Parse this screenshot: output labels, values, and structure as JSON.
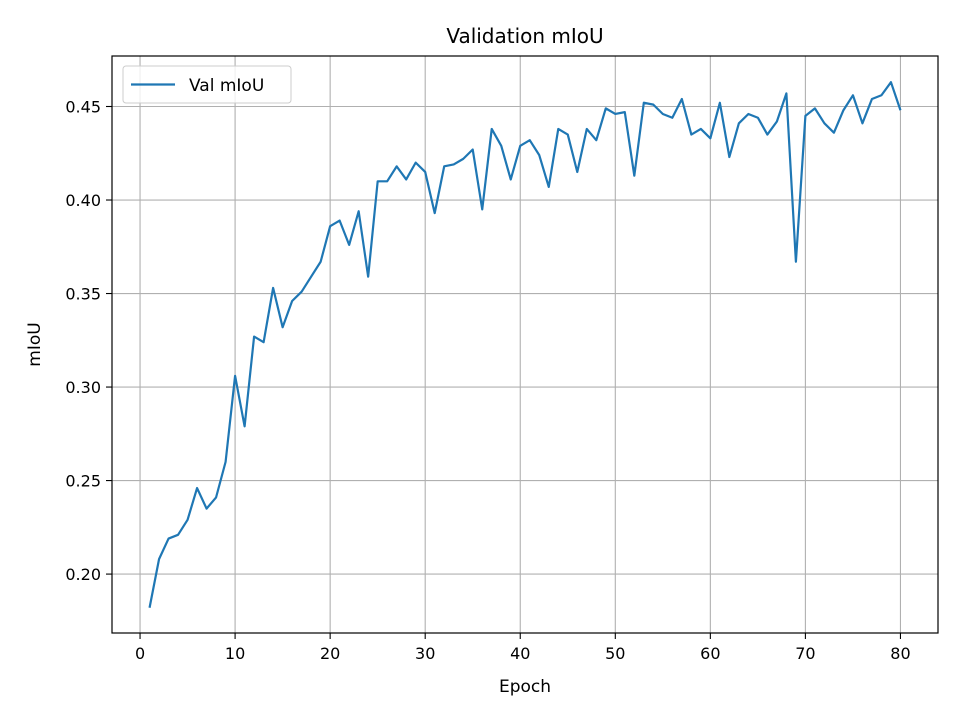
{
  "chart_data": {
    "type": "line",
    "title": "Validation mIoU",
    "xlabel": "Epoch",
    "ylabel": "mIoU",
    "xlim": [
      -2.95,
      83.95
    ],
    "ylim": [
      0.1685,
      0.477
    ],
    "xticks": [
      0,
      10,
      20,
      30,
      40,
      50,
      60,
      70,
      80
    ],
    "yticks": [
      0.2,
      0.25,
      0.3,
      0.35,
      0.4,
      0.45
    ],
    "ytick_labels": [
      "0.20",
      "0.25",
      "0.30",
      "0.35",
      "0.40",
      "0.45"
    ],
    "grid": true,
    "legend_position": "upper-left",
    "series": [
      {
        "name": "Val mIoU",
        "color": "#1f77b4",
        "x": [
          1,
          2,
          3,
          4,
          5,
          6,
          7,
          8,
          9,
          10,
          11,
          12,
          13,
          14,
          15,
          16,
          17,
          18,
          19,
          20,
          21,
          22,
          23,
          24,
          25,
          26,
          27,
          28,
          29,
          30,
          31,
          32,
          33,
          34,
          35,
          36,
          37,
          38,
          39,
          40,
          41,
          42,
          43,
          44,
          45,
          46,
          47,
          48,
          49,
          50,
          51,
          52,
          53,
          54,
          55,
          56,
          57,
          58,
          59,
          60,
          61,
          62,
          63,
          64,
          65,
          66,
          67,
          68,
          69,
          70,
          71,
          72,
          73,
          74,
          75,
          76,
          77,
          78,
          79,
          80
        ],
        "y": [
          0.182,
          0.208,
          0.219,
          0.221,
          0.229,
          0.246,
          0.235,
          0.241,
          0.26,
          0.306,
          0.279,
          0.327,
          0.324,
          0.353,
          0.332,
          0.346,
          0.351,
          0.359,
          0.367,
          0.386,
          0.389,
          0.376,
          0.394,
          0.359,
          0.41,
          0.41,
          0.418,
          0.411,
          0.42,
          0.415,
          0.393,
          0.418,
          0.419,
          0.422,
          0.427,
          0.395,
          0.438,
          0.429,
          0.411,
          0.429,
          0.432,
          0.424,
          0.407,
          0.438,
          0.435,
          0.415,
          0.438,
          0.432,
          0.449,
          0.446,
          0.447,
          0.413,
          0.452,
          0.451,
          0.446,
          0.444,
          0.454,
          0.435,
          0.438,
          0.433,
          0.452,
          0.423,
          0.441,
          0.446,
          0.444,
          0.435,
          0.442,
          0.457,
          0.367,
          0.445,
          0.449,
          0.441,
          0.436,
          0.448,
          0.456,
          0.441,
          0.454,
          0.456,
          0.463,
          0.448
        ]
      }
    ]
  }
}
